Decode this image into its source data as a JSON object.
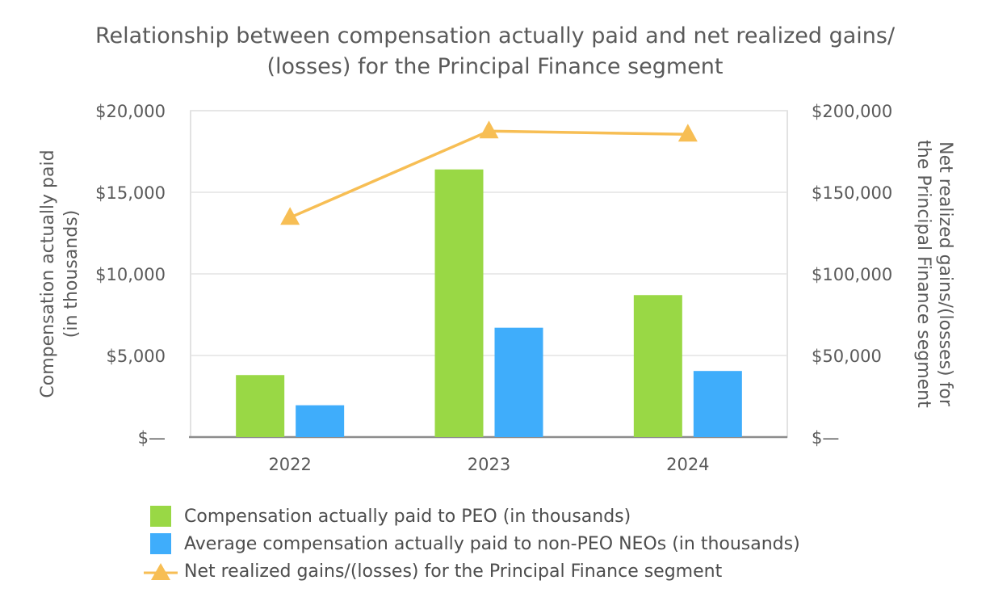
{
  "chart_data": {
    "type": "bar",
    "title_lines": [
      "Relationship between compensation actually paid and net realized gains/",
      "(losses) for the Principal Finance segment"
    ],
    "categories": [
      "2022",
      "2023",
      "2024"
    ],
    "series": [
      {
        "name": "Compensation actually paid to PEO (in thousands)",
        "type": "bar",
        "axis": "left",
        "color": "#99d845",
        "values": [
          3800,
          16400,
          8700
        ]
      },
      {
        "name": "Average compensation actually paid to non-PEO NEOs (in thousands)",
        "type": "bar",
        "axis": "left",
        "color": "#3fadfb",
        "values": [
          1950,
          6700,
          4050
        ]
      },
      {
        "name": "Net realized gains/(losses) for the Principal Finance segment",
        "type": "line",
        "axis": "right",
        "color": "#f7be54",
        "values": [
          134500,
          187500,
          185500
        ]
      }
    ],
    "ylabel_lines": [
      "Compensation actually paid",
      "(in thousands)"
    ],
    "y2label_lines": [
      "Net realized gains/(losses) for",
      "the Principal Finance segment"
    ],
    "ylim": [
      0,
      20000
    ],
    "y2lim": [
      0,
      200000
    ],
    "yticks": [
      {
        "value": 0,
        "label": "$—"
      },
      {
        "value": 5000,
        "label": "$5,000"
      },
      {
        "value": 10000,
        "label": "$10,000"
      },
      {
        "value": 15000,
        "label": "$15,000"
      },
      {
        "value": 20000,
        "label": "$20,000"
      }
    ],
    "y2ticks": [
      {
        "value": 0,
        "label": "$—"
      },
      {
        "value": 50000,
        "label": "$50,000"
      },
      {
        "value": 100000,
        "label": "$100,000"
      },
      {
        "value": 150000,
        "label": "$150,000"
      },
      {
        "value": 200000,
        "label": "$200,000"
      }
    ],
    "grid": true,
    "legend_position": "bottom"
  }
}
